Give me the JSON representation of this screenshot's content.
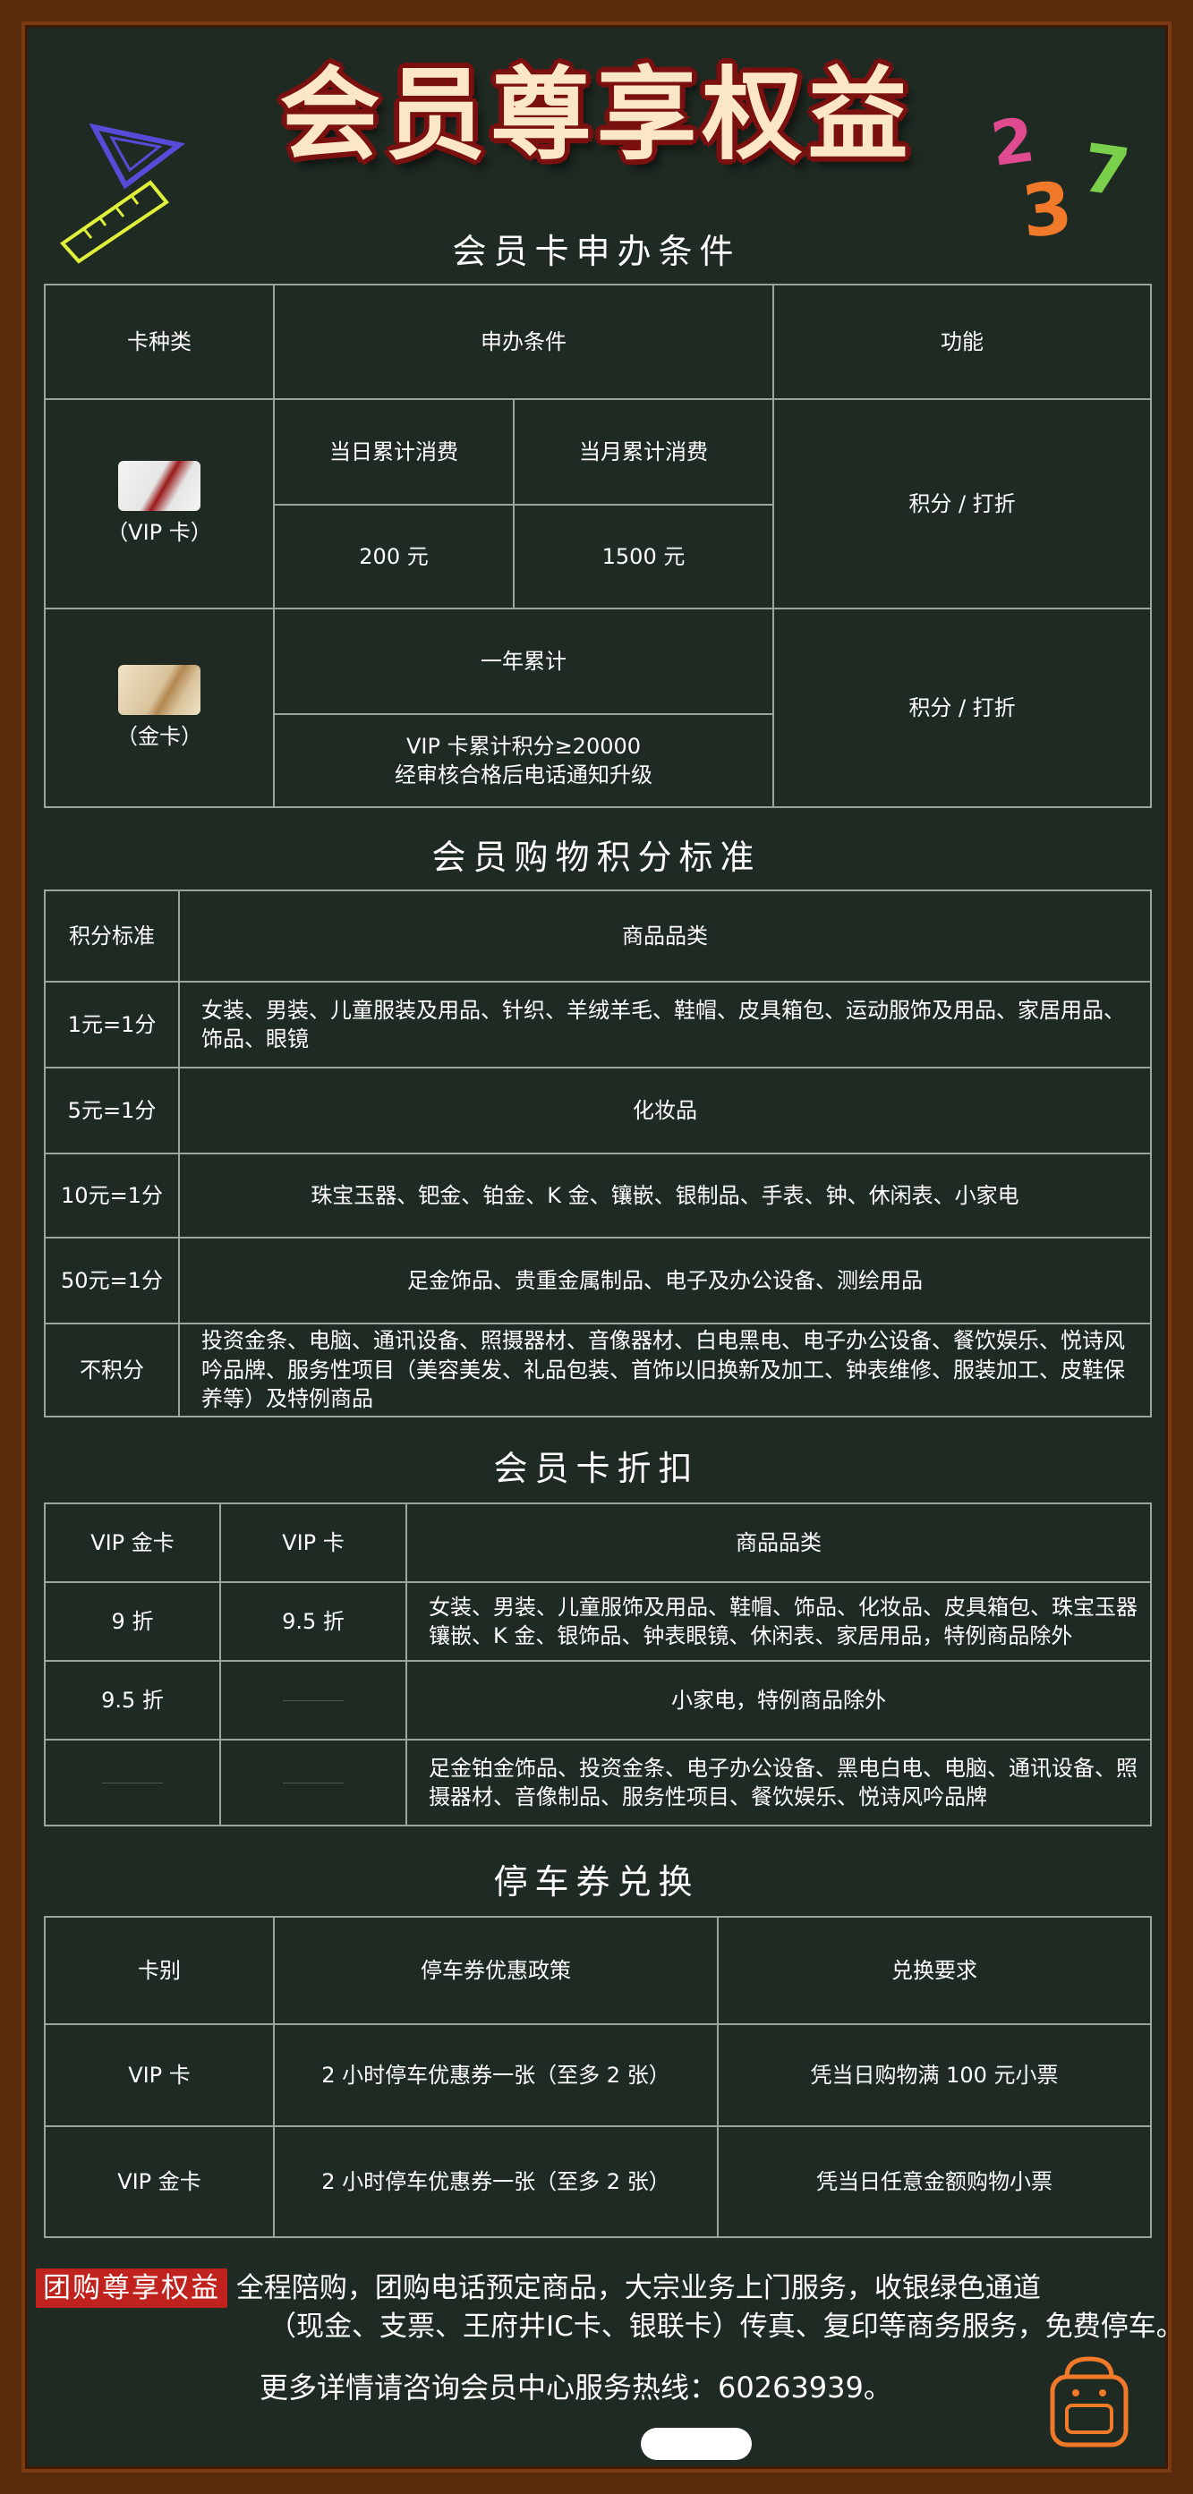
{
  "page_title": "会员尊享权益",
  "sections": {
    "card_apply": {
      "title": "会员卡申办条件",
      "headers": [
        "卡种类",
        "申办条件",
        "功能"
      ],
      "vip": {
        "card_label": "（VIP 卡）",
        "daily_label": "当日累计消费",
        "monthly_label": "当月累计消费",
        "daily_value": "200 元",
        "monthly_value": "1500 元",
        "function": "积分 / 打折"
      },
      "gold": {
        "card_label": "（金卡）",
        "year_label": "一年累计",
        "condition_line1": "VIP 卡累计积分≥20000",
        "condition_line2": "经审核合格后电话通知升级",
        "function": "积分 / 打折"
      }
    },
    "points": {
      "title": "会员购物积分标准",
      "headers": [
        "积分标准",
        "商品品类"
      ],
      "rows": [
        {
          "standard": "1元=1分",
          "category": "女装、男装、儿童服装及用品、针织、羊绒羊毛、鞋帽、皮具箱包、运动服饰及用品、家居用品、饰品、眼镜"
        },
        {
          "standard": "5元=1分",
          "category": "化妆品"
        },
        {
          "standard": "10元=1分",
          "category": "珠宝玉器、钯金、铂金、K 金、镶嵌、银制品、手表、钟、休闲表、小家电"
        },
        {
          "standard": "50元=1分",
          "category": "足金饰品、贵重金属制品、电子及办公设备、测绘用品"
        },
        {
          "standard": "不积分",
          "category": "投资金条、电脑、通讯设备、照摄器材、音像器材、白电黑电、电子办公设备、餐饮娱乐、悦诗风吟品牌、服务性项目（美容美发、礼品包装、首饰以旧换新及加工、钟表维修、服装加工、皮鞋保养等）及特例商品"
        }
      ]
    },
    "discount": {
      "title": "会员卡折扣",
      "headers": [
        "VIP 金卡",
        "VIP 卡",
        "商品品类"
      ],
      "rows": [
        {
          "gold": "9 折",
          "vip": "9.5 折",
          "category": "女装、男装、儿童服饰及用品、鞋帽、饰品、化妆品、皮具箱包、珠宝玉器镶嵌、K 金、银饰品、钟表眼镜、休闲表、家居用品，特例商品除外"
        },
        {
          "gold": "9.5 折",
          "vip": "",
          "category": "小家电，特例商品除外"
        },
        {
          "gold": "",
          "vip": "",
          "category": "足金铂金饰品、投资金条、电子办公设备、黑电白电、电脑、通讯设备、照摄器材、音像制品、服务性项目、餐饮娱乐、悦诗风吟品牌"
        }
      ]
    },
    "parking": {
      "title": "停车券兑换",
      "headers": [
        "卡别",
        "停车券优惠政策",
        "兑换要求"
      ],
      "rows": [
        {
          "card": "VIP 卡",
          "policy": "2 小时停车优惠券一张（至多 2 张）",
          "requirement": "凭当日购物满 100 元小票"
        },
        {
          "card": "VIP 金卡",
          "policy": "2 小时停车优惠券一张（至多 2 张）",
          "requirement": "凭当日任意金额购物小票"
        }
      ]
    }
  },
  "footer": {
    "badge": "团购尊享权益",
    "text_line1": "全程陪购，团购电话预定商品，大宗业务上门服务，收银绿色通道",
    "text_line2": "（现金、支票、王府井IC卡、银联卡）传真、复印等商务服务，免费停车。",
    "hotline": "更多详情请咨询会员中心服务热线：60263939。"
  },
  "decorations": {
    "numbers": [
      "2",
      "3",
      "7"
    ],
    "icons": [
      "triangle-ruler-icon",
      "ruler-icon",
      "backpack-icon"
    ]
  },
  "colors": {
    "board": "#1f2a22",
    "frame": "#5a2a0c",
    "title_fill": "#fbe6c8",
    "title_outline": "#7a1010",
    "badge": "#c0221d",
    "grid_line": "#9aa59c"
  }
}
